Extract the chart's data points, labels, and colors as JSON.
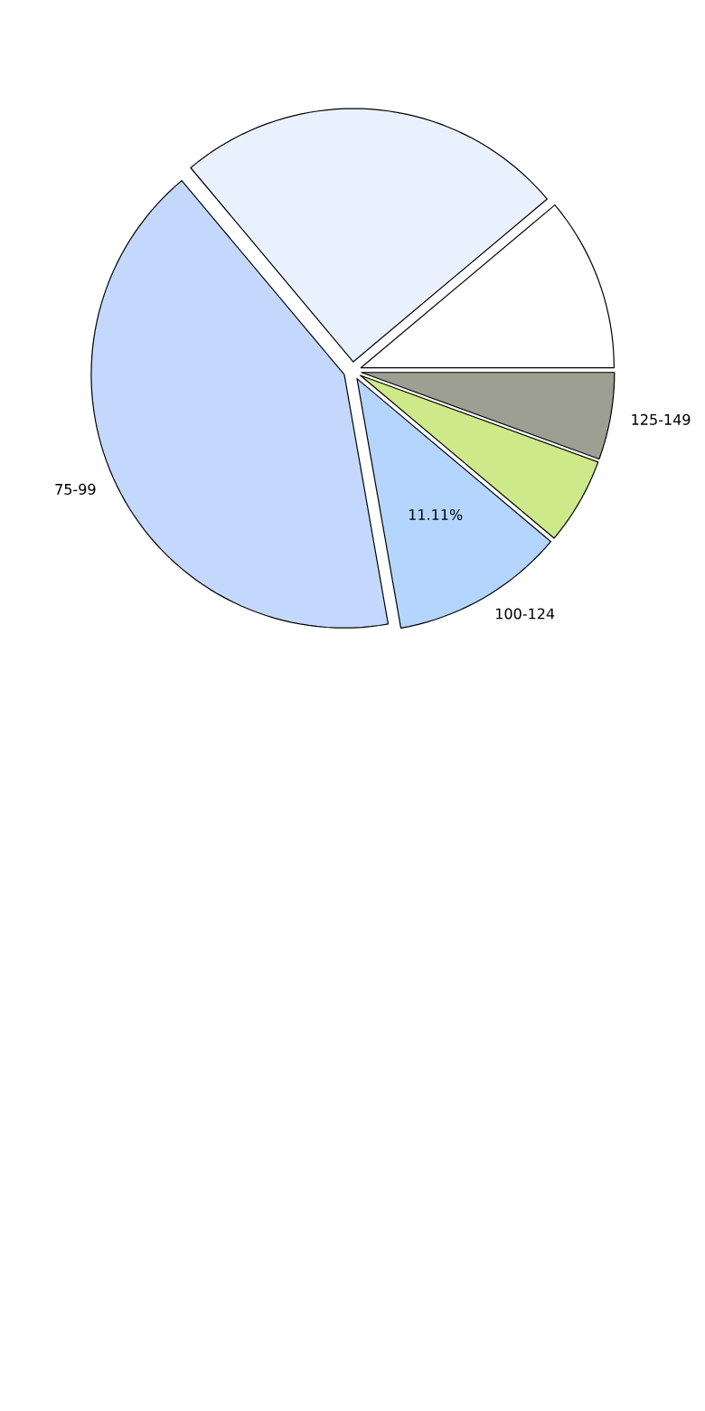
{
  "chart_data": {
    "type": "pie",
    "categories": [
      null,
      null,
      "75-99",
      "100-124",
      null,
      "125-149"
    ],
    "values": [
      11.11,
      25,
      41.67,
      11.11,
      5.56,
      5.56
    ],
    "colors": [
      "#ffffff",
      "#eaf1fe",
      "#c4d8fe",
      "#b4d6fe",
      "#cde98a",
      "#9c9f92"
    ],
    "value_labels": [
      null,
      null,
      null,
      "11.11%",
      null,
      null
    ]
  }
}
